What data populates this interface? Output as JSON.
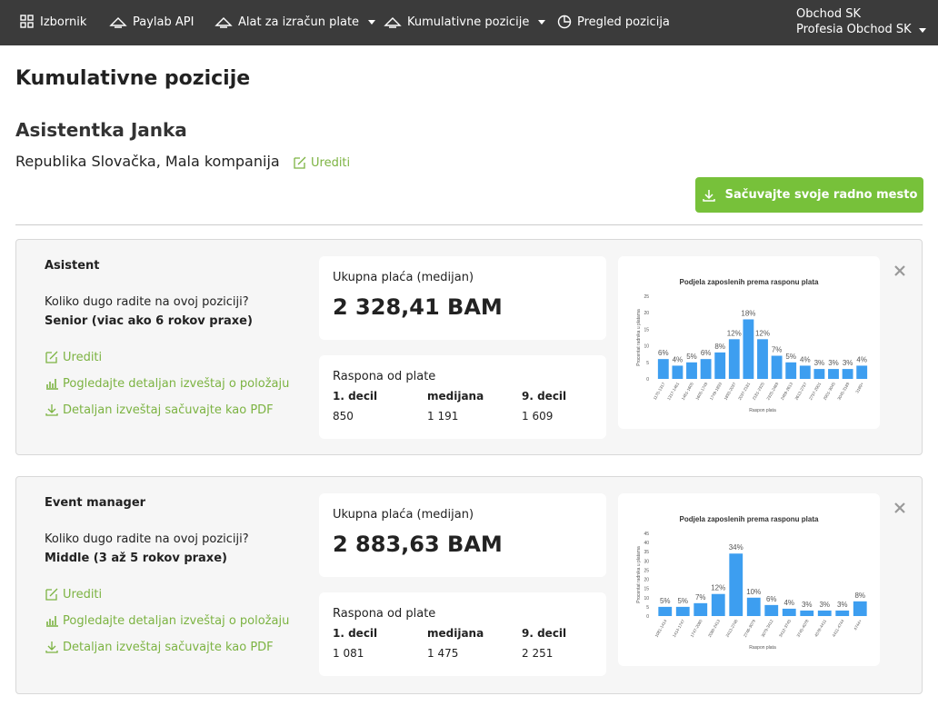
{
  "nav": {
    "items": [
      "Izbornik",
      "Paylab API",
      "Alat za izračun plate",
      "Kumulativne pozicije",
      "Pregled pozicija"
    ],
    "user": [
      "Obchod SK",
      "Profesia Obchod SK"
    ]
  },
  "page": {
    "title": "Kumulativne pozicije",
    "name": "Asistentka Janka",
    "location": "Republika Slovačka, Mala kompanija",
    "edit": "Urediti",
    "save": "Sačuvajte svoje radno mesto"
  },
  "cards": [
    {
      "position": "Asistent",
      "question": "Koliko dugo radite na ovoj poziciji?",
      "experience": "Senior (viac ako 6 rokov praxe)",
      "links": [
        "Urediti",
        "Pogledajte detaljan izveštaj o položaju",
        "Detaljan izveštaj sačuvajte kao PDF"
      ],
      "salary_label": "Ukupna plaća (medijan)",
      "salary": "2 328,41 BAM",
      "range_label": "Raspona od plate",
      "range_headers": [
        "1. decil",
        "medijana",
        "9. decil"
      ],
      "range_values": [
        "850",
        "1 191",
        "1 609"
      ],
      "chart_data": {
        "type": "bar",
        "title": "Podjela zaposlenih prema rasponu plata",
        "x_label": "Raspon plata",
        "y_label": "Procentat radnika u platama",
        "color": "#3d9ef0",
        "categories": [
          "1170-1317",
          "1317-1461",
          "1461-1605",
          "1605-1749",
          "1749-1893",
          "1893-2037",
          "2037-2181",
          "2181-2325",
          "2325-2469",
          "2469-2613",
          "2613-2757",
          "2757-2901",
          "2901-3045",
          "3045-3189",
          "3189+"
        ],
        "values": [
          6,
          4,
          5,
          6,
          8,
          12,
          18,
          12,
          7,
          5,
          4,
          3,
          3,
          3,
          4
        ],
        "value_labels": [
          "6%",
          "4%",
          "5%",
          "6%",
          "8%",
          "12%",
          "18%",
          "12%",
          "7%",
          "5%",
          "4%",
          "3%",
          "3%",
          "3%",
          "4%"
        ],
        "ylim": [
          0,
          25
        ],
        "yticks": [
          0,
          5,
          10,
          15,
          20,
          25
        ]
      }
    },
    {
      "position": "Event manager",
      "question": "Koliko dugo radite na ovoj poziciji?",
      "experience": "Middle (3 až 5 rokov praxe)",
      "links": [
        "Urediti",
        "Pogledajte detaljan izveštaj o položaju",
        "Detaljan izveštaj sačuvajte kao PDF"
      ],
      "salary_label": "Ukupna plaća (medijan)",
      "salary": "2 883,63 BAM",
      "range_label": "Raspona od plate",
      "range_headers": [
        "1. decil",
        "medijana",
        "9. decil"
      ],
      "range_values": [
        "1 081",
        "1 475",
        "2 251"
      ],
      "chart_data": {
        "type": "bar",
        "title": "Podjela zaposlenih prema rasponu plata",
        "x_label": "Raspon plata",
        "y_label": "Procentat radnika u platama",
        "color": "#3d9ef0",
        "categories": [
          "1081-1414",
          "1414-1747",
          "1747-2080",
          "2080-2413",
          "2413-2746",
          "2746-3079",
          "3079-3412",
          "3412-3745",
          "3745-4078",
          "4078-4411",
          "4411-4744",
          "4744+"
        ],
        "values": [
          5,
          5,
          7,
          12,
          34,
          10,
          6,
          4,
          3,
          3,
          3,
          8
        ],
        "value_labels": [
          "5%",
          "5%",
          "7%",
          "12%",
          "34%",
          "10%",
          "6%",
          "4%",
          "3%",
          "3%",
          "3%",
          "8%"
        ],
        "ylim": [
          0,
          45
        ],
        "yticks": [
          0,
          5,
          10,
          15,
          20,
          25,
          30,
          35,
          40,
          45
        ]
      }
    }
  ]
}
